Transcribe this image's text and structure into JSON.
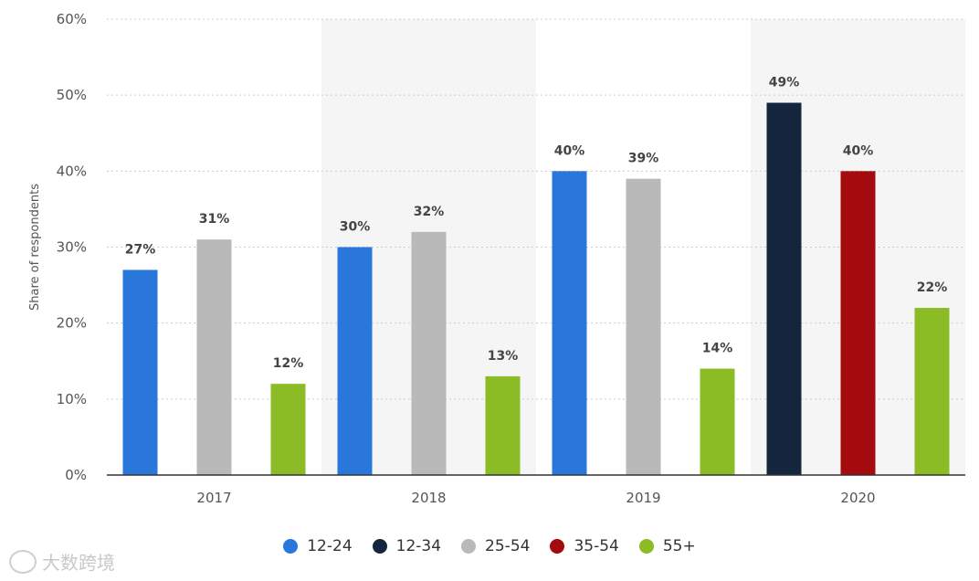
{
  "chart_data": {
    "type": "bar",
    "title": "",
    "xlabel": "",
    "ylabel": "Share of respondents",
    "ylim": [
      0,
      60
    ],
    "yticks": [
      "0%",
      "10%",
      "20%",
      "30%",
      "40%",
      "50%",
      "60%"
    ],
    "grid": true,
    "legend_position": "bottom",
    "categories": [
      "2017",
      "2018",
      "2019",
      "2020"
    ],
    "series": [
      {
        "name": "12-24",
        "color": "#2a77db",
        "values": [
          27,
          30,
          40,
          null
        ],
        "labels": [
          "27%",
          "30%",
          "40%",
          ""
        ]
      },
      {
        "name": "12-34",
        "color": "#13263e",
        "values": [
          null,
          null,
          null,
          49
        ],
        "labels": [
          "",
          "",
          "",
          "49%"
        ]
      },
      {
        "name": "25-54",
        "color": "#b9b9b9",
        "values": [
          31,
          32,
          39,
          null
        ],
        "labels": [
          "31%",
          "32%",
          "39%",
          ""
        ]
      },
      {
        "name": "35-54",
        "color": "#a30b0e",
        "values": [
          null,
          null,
          null,
          40
        ],
        "labels": [
          "",
          "",
          "",
          "40%"
        ]
      },
      {
        "name": "55+",
        "color": "#8bbb25",
        "values": [
          12,
          13,
          14,
          22
        ],
        "labels": [
          "12%",
          "13%",
          "14%",
          "22%"
        ]
      }
    ]
  },
  "watermark": {
    "text": "大数跨境",
    "icon": "cloud-logo-icon"
  }
}
